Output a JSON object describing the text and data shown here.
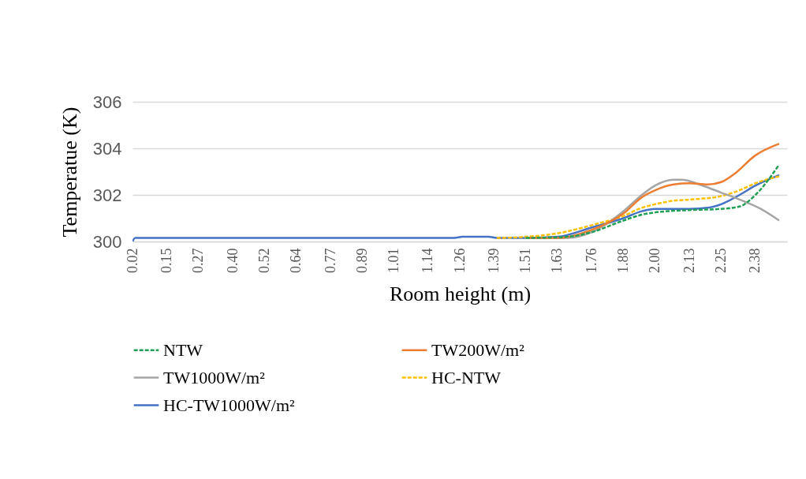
{
  "chart_data": {
    "type": "line",
    "xlabel": "Room height (m)",
    "ylabel": "Temperatue (K)",
    "xlim": [
      0.02,
      2.5
    ],
    "xticks": [
      {
        "value": 0.02,
        "label": "0.02"
      },
      {
        "value": 0.15,
        "label": "0.15"
      },
      {
        "value": 0.27,
        "label": "0.27"
      },
      {
        "value": 0.4,
        "label": "0.40"
      },
      {
        "value": 0.52,
        "label": "0.52"
      },
      {
        "value": 0.64,
        "label": "0.64"
      },
      {
        "value": 0.77,
        "label": "0.77"
      },
      {
        "value": 0.89,
        "label": "0.89"
      },
      {
        "value": 1.01,
        "label": "1.01"
      },
      {
        "value": 1.14,
        "label": "1.14"
      },
      {
        "value": 1.26,
        "label": "1.26"
      },
      {
        "value": 1.39,
        "label": "1.39"
      },
      {
        "value": 1.51,
        "label": "1.51"
      },
      {
        "value": 1.63,
        "label": "1.63"
      },
      {
        "value": 1.76,
        "label": "1.76"
      },
      {
        "value": 1.88,
        "label": "1.88"
      },
      {
        "value": 2,
        "label": "2.00"
      },
      {
        "value": 2.13,
        "label": "2.13"
      },
      {
        "value": 2.25,
        "label": "2.25"
      },
      {
        "value": 2.38,
        "label": "2.38"
      }
    ],
    "ylim": [
      300,
      306
    ],
    "yticks": [
      300,
      302,
      304,
      306
    ],
    "grid": "y",
    "legend": "bottom",
    "series": [
      {
        "name": "NTW",
        "color": "#1fa055",
        "line_style": "dashed",
        "x": [
          1.51,
          1.67,
          1.76,
          1.88,
          1.95,
          2.0,
          2.13,
          2.25,
          2.32,
          2.38,
          2.47
        ],
        "values": [
          300.15,
          300.2,
          300.4,
          300.9,
          301.15,
          301.25,
          301.35,
          301.4,
          301.5,
          302.0,
          303.3
        ]
      },
      {
        "name": "TW200W/m²",
        "color": "#ed7d31",
        "line_style": "solid",
        "x": [
          1.51,
          1.63,
          1.76,
          1.88,
          1.95,
          2.0,
          2.07,
          2.13,
          2.2,
          2.25,
          2.3,
          2.38,
          2.47
        ],
        "values": [
          300.15,
          300.15,
          300.5,
          301.2,
          301.9,
          302.2,
          302.45,
          302.5,
          302.45,
          302.55,
          302.9,
          303.7,
          304.2
        ]
      },
      {
        "name": "TW1000W/m²",
        "color": "#a5a5a5",
        "line_style": "solid",
        "x": [
          1.51,
          1.67,
          1.76,
          1.88,
          1.95,
          2.0,
          2.07,
          2.1,
          2.18,
          2.25,
          2.32,
          2.4,
          2.47
        ],
        "values": [
          300.15,
          300.15,
          300.4,
          301.3,
          302.0,
          302.4,
          302.65,
          302.65,
          302.4,
          302.1,
          301.8,
          301.4,
          300.9
        ]
      },
      {
        "name": "HC-NTW",
        "color": "#ffc000",
        "line_style": "dashed",
        "x": [
          1.4,
          1.51,
          1.63,
          1.76,
          1.88,
          1.95,
          2.0,
          2.07,
          2.13,
          2.25,
          2.32,
          2.38,
          2.47
        ],
        "values": [
          300.15,
          300.2,
          300.35,
          300.7,
          301.1,
          301.45,
          301.6,
          301.75,
          301.8,
          301.95,
          302.2,
          302.5,
          302.8
        ]
      },
      {
        "name": "HC-TW1000W/m²",
        "color": "#4472c4",
        "line_style": "solid",
        "x": [
          0.02,
          0.03,
          1.24,
          1.27,
          1.37,
          1.4,
          1.51,
          1.63,
          1.76,
          1.88,
          1.95,
          2.0,
          2.13,
          2.2,
          2.25,
          2.32,
          2.38,
          2.47
        ],
        "values": [
          300,
          300.15,
          300.15,
          300.2,
          300.2,
          300.15,
          300.15,
          300.2,
          300.6,
          301.0,
          301.3,
          301.4,
          301.4,
          301.45,
          301.6,
          302.0,
          302.4,
          302.85
        ]
      }
    ]
  }
}
